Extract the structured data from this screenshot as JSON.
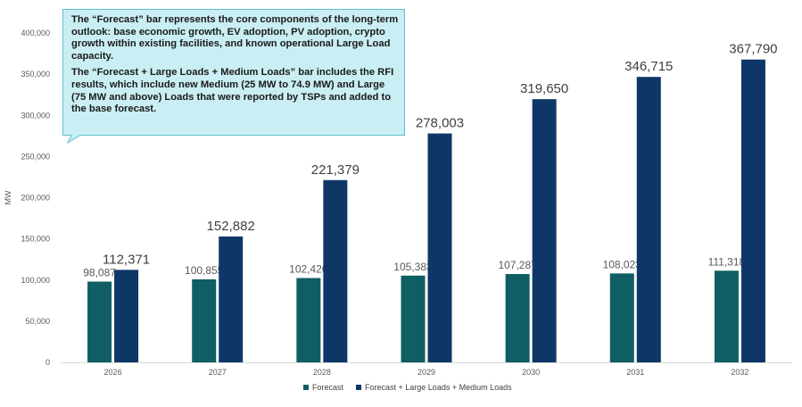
{
  "chart_data": {
    "type": "bar",
    "categories": [
      "2026",
      "2027",
      "2028",
      "2029",
      "2030",
      "2031",
      "2032"
    ],
    "series": [
      {
        "name": "Forecast",
        "color": "#0f5e63",
        "values": [
          98087,
          100855,
          102420,
          105383,
          107287,
          108023,
          111318
        ]
      },
      {
        "name": "Forecast + Large Loads + Medium Loads",
        "color": "#0e3767",
        "values": [
          112371,
          152882,
          221379,
          278003,
          319650,
          346715,
          367790
        ]
      }
    ],
    "data_labels": [
      [
        "98,087",
        "100,855",
        "102,420",
        "105,383",
        "107,287",
        "108,023",
        "111,318"
      ],
      [
        "112,371",
        "152,882",
        "221,379",
        "278,003",
        "319,650",
        "346,715",
        "367,790"
      ]
    ],
    "ylabel": "MW",
    "ylim": [
      0,
      400000
    ],
    "yticks": [
      0,
      50000,
      100000,
      150000,
      200000,
      250000,
      300000,
      350000,
      400000
    ],
    "ytick_labels": [
      "0",
      "50,000",
      "100,000",
      "150,000",
      "200,000",
      "250,000",
      "300,000",
      "350,000",
      "400,000"
    ],
    "grid": false,
    "legend_position": "bottom",
    "annotation": {
      "paragraphs": [
        "The “Forecast” bar represents the core components of the long-term outlook: base economic growth, EV adoption, PV adoption, crypto growth within existing facilities, and known operational Large Load capacity.",
        "The “Forecast + Large Loads + Medium Loads” bar includes the RFI results, which include new Medium (25 MW to 74.9 MW) and Large (75 MW and above) Loads that were reported by TSPs and added to the base forecast."
      ],
      "fill_color": "#c9eef3",
      "border_color": "#5fc1cc"
    }
  }
}
